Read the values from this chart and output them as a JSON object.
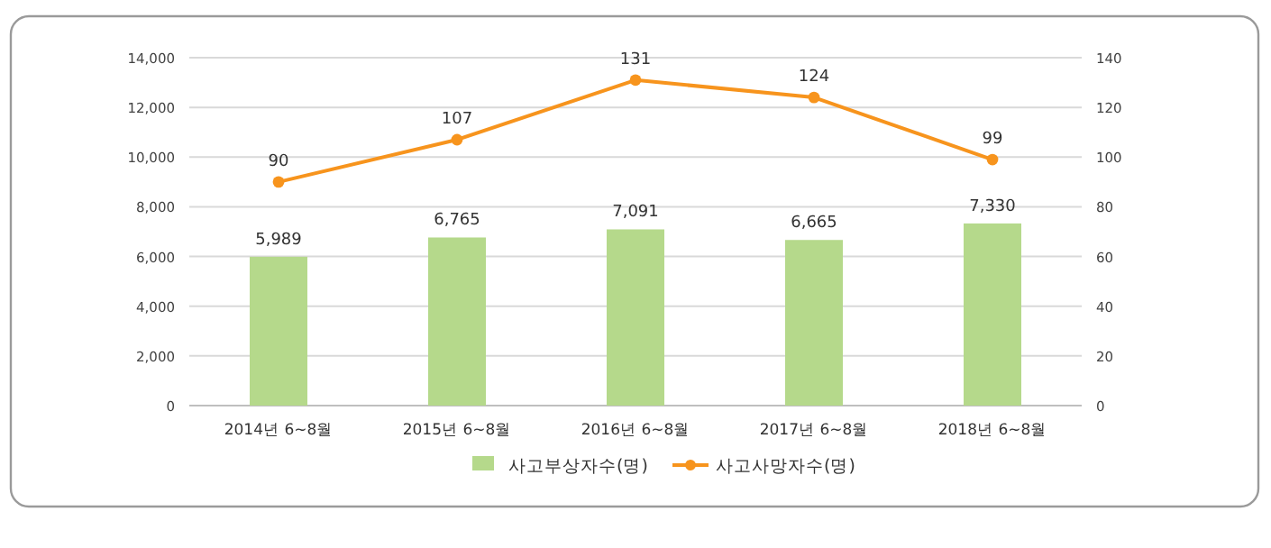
{
  "chart_data": {
    "type": "bar",
    "categories": [
      "2014년 6~8월",
      "2015년 6~8월",
      "2016년 6~8월",
      "2017년 6~8월",
      "2018년 6~8월"
    ],
    "series": [
      {
        "name": "사고부상자수(명)",
        "color": "#b5d98b",
        "values": [
          5989,
          6765,
          7091,
          6665,
          7330
        ],
        "value_labels": [
          "5,989",
          "6,765",
          "7,091",
          "6,665",
          "7,330"
        ]
      },
      {
        "name": "사고사망자수(명)",
        "type": "line",
        "axis": "y2",
        "marker": "circle",
        "color": "#f7941d",
        "values": [
          90,
          107,
          131,
          124,
          99
        ],
        "value_labels": [
          "90",
          "107",
          "131",
          "124",
          "99"
        ]
      }
    ],
    "ylim": [
      0,
      14000
    ],
    "yticks": [
      0,
      {
        "value": 2000,
        "label": "2,000"
      },
      {
        "value": 4000,
        "label": "4,000"
      },
      {
        "value": 6000,
        "label": "6,000"
      },
      {
        "value": 8000,
        "label": "8,000"
      },
      {
        "value": 10000,
        "label": "10,000"
      },
      {
        "value": 12000,
        "label": "12,000"
      },
      {
        "value": 14000,
        "label": "14,000"
      }
    ],
    "y2lim": [
      0,
      140
    ],
    "y2ticks": [
      0,
      20,
      40,
      60,
      80,
      100,
      120,
      140
    ],
    "grid": "y",
    "legend": "bottom"
  }
}
